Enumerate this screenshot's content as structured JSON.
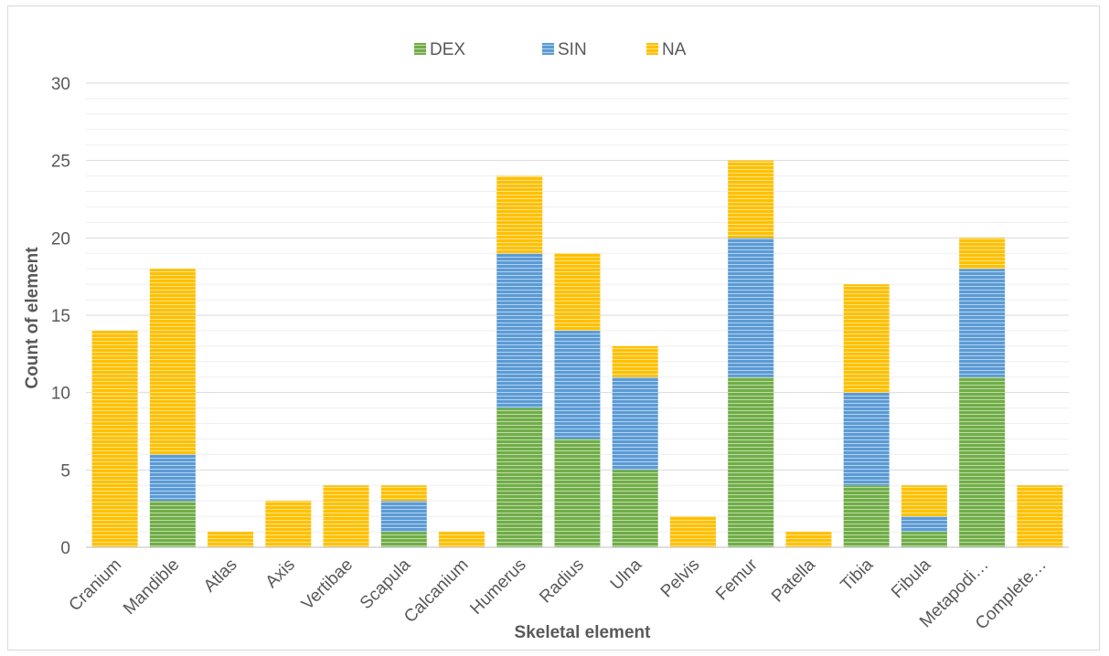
{
  "chart_data": {
    "type": "bar",
    "stacked": true,
    "title": "",
    "xlabel": "Skeletal element",
    "ylabel": "Count of element",
    "ylim": [
      0,
      30
    ],
    "yticks": [
      "0",
      "5",
      "10",
      "15",
      "20",
      "25",
      "30"
    ],
    "grid": true,
    "legend_position": "top",
    "categories": [
      "Cranium",
      "Mandible",
      "Atlas",
      "Axis",
      "Vertibae",
      "Scapula",
      "Calcanium",
      "Humerus",
      "Radius",
      "Ulna",
      "Pelvis",
      "Femur",
      "Patella",
      "Tibia",
      "Fibula",
      "Metapodi…",
      "Complete…"
    ],
    "series": [
      {
        "name": "DEX",
        "color": "#70ad47",
        "values": [
          0,
          3,
          0,
          0,
          0,
          1,
          0,
          9,
          7,
          5,
          0,
          11,
          0,
          4,
          1,
          11,
          0
        ]
      },
      {
        "name": "SIN",
        "color": "#5b9bd5",
        "values": [
          0,
          3,
          0,
          0,
          0,
          2,
          0,
          10,
          7,
          6,
          0,
          9,
          0,
          6,
          1,
          7,
          0
        ]
      },
      {
        "name": "NA",
        "color": "#ffc000",
        "values": [
          14,
          12,
          1,
          3,
          4,
          1,
          1,
          5,
          5,
          2,
          2,
          5,
          1,
          7,
          2,
          2,
          4
        ]
      }
    ]
  }
}
